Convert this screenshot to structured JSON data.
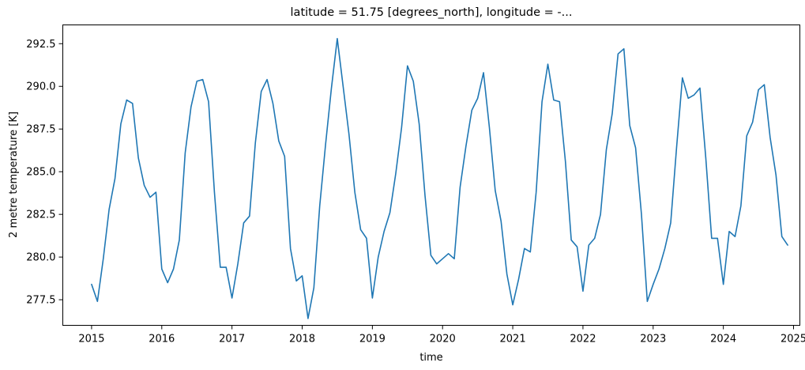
{
  "chart_data": {
    "type": "line",
    "title": "latitude = 51.75 [degrees_north], longitude = -...",
    "xlabel": "time",
    "ylabel": "2 metre temperature [K]",
    "xlim": [
      2014.59,
      2025.09
    ],
    "ylim": [
      276.0,
      293.6
    ],
    "grid": false,
    "legend": "none",
    "line_color": "#1f77b4",
    "x_ticks": [
      2015,
      2016,
      2017,
      2018,
      2019,
      2020,
      2021,
      2022,
      2023,
      2024,
      2025
    ],
    "x_tick_labels": [
      "2015",
      "2016",
      "2017",
      "2018",
      "2019",
      "2020",
      "2021",
      "2022",
      "2023",
      "2024",
      "2025"
    ],
    "y_ticks": [
      277.5,
      280.0,
      282.5,
      285.0,
      287.5,
      290.0,
      292.5
    ],
    "y_tick_labels": [
      "277.5",
      "280.0",
      "282.5",
      "285.0",
      "287.5",
      "290.0",
      "292.5"
    ],
    "series": [
      {
        "x_start": "2015-01",
        "x_step": "1 month",
        "values": [
          278.4,
          277.4,
          279.9,
          282.8,
          284.6,
          287.8,
          289.2,
          289.0,
          285.8,
          284.2,
          283.5,
          283.8,
          279.3,
          278.5,
          279.3,
          281.0,
          286.1,
          288.8,
          290.3,
          290.4,
          289.1,
          283.8,
          279.4,
          279.4,
          277.6,
          279.6,
          282.0,
          282.4,
          286.7,
          289.7,
          290.4,
          289.0,
          286.8,
          285.9,
          280.5,
          278.6,
          278.9,
          276.4,
          278.2,
          283.0,
          286.6,
          289.9,
          292.8,
          290.0,
          287.2,
          283.8,
          281.6,
          281.1,
          277.6,
          280.0,
          281.5,
          282.6,
          284.9,
          287.6,
          291.2,
          290.3,
          287.8,
          283.6,
          280.1,
          279.6,
          279.9,
          280.2,
          279.9,
          284.1,
          286.5,
          288.6,
          289.3,
          290.8,
          287.6,
          283.9,
          282.1,
          279.0,
          277.2,
          278.7,
          280.5,
          280.3,
          283.8,
          289.1,
          291.3,
          289.2,
          289.1,
          285.6,
          281.0,
          280.6,
          278.0,
          280.7,
          281.1,
          282.5,
          286.3,
          288.4,
          291.9,
          292.2,
          287.7,
          286.4,
          282.5,
          277.4,
          278.4,
          279.3,
          280.5,
          282.0,
          286.4,
          290.5,
          289.3,
          289.5,
          289.9,
          285.8,
          281.1,
          281.1,
          278.4,
          281.5,
          281.2,
          283.0,
          287.1,
          287.9,
          289.8,
          290.1,
          287.0,
          284.8,
          281.2,
          280.7
        ]
      }
    ]
  }
}
